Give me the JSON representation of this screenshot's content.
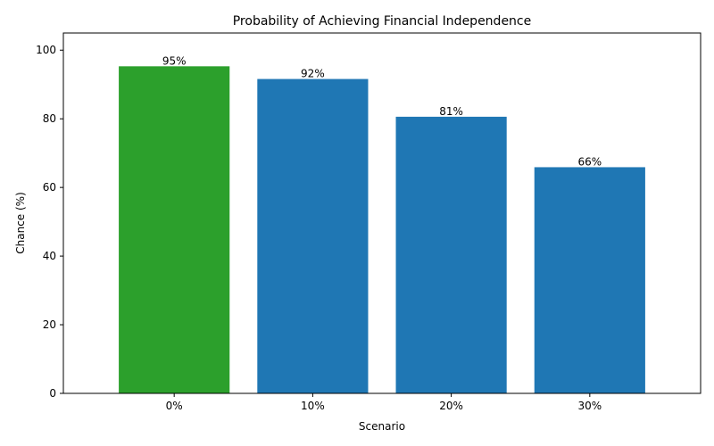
{
  "chart_data": {
    "type": "bar",
    "title": "Probability of Achieving Financial Independence",
    "xlabel": "Scenario",
    "ylabel": "Chance (%)",
    "categories": [
      "0%",
      "10%",
      "20%",
      "30%"
    ],
    "values": [
      95.3,
      91.6,
      80.6,
      65.9
    ],
    "data_labels": [
      "95%",
      "92%",
      "81%",
      "66%"
    ],
    "bar_colors": [
      "#2ca02c",
      "#1f77b4",
      "#1f77b4",
      "#1f77b4"
    ],
    "ylim": [
      0,
      105
    ],
    "yticks": [
      0,
      20,
      40,
      60,
      80,
      100
    ],
    "grid": false,
    "legend": "none"
  }
}
